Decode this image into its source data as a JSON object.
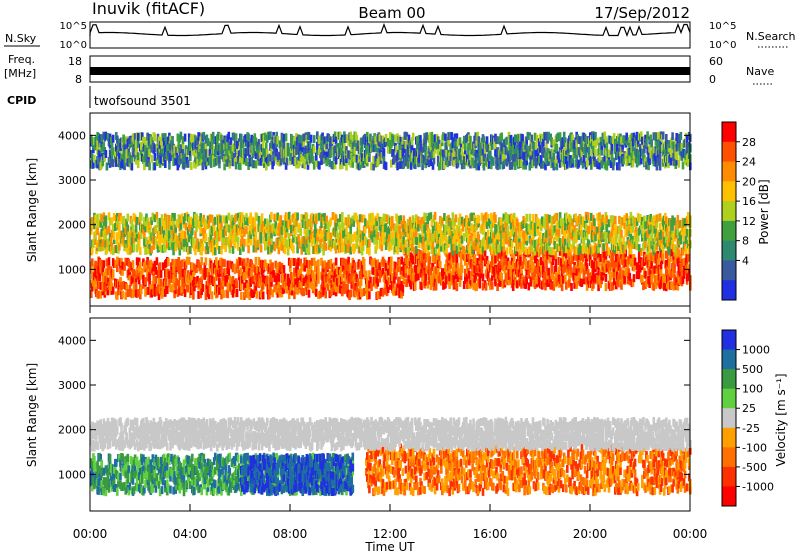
{
  "header": {
    "station": "Inuvik (fitACF)",
    "beam": "Beam 00",
    "date": "17/Sep/2012"
  },
  "strip_panels": {
    "nsky": {
      "label": "N.Sky",
      "right_label": "N.Search",
      "ticks_left": [
        "10^5",
        "10^0"
      ],
      "ticks_right": [
        "10^5",
        "10^0"
      ]
    },
    "freq": {
      "label_line1": "Freq.",
      "label_line2": "[MHz]",
      "right_label": "Nave",
      "ticks_left": [
        "18",
        "8"
      ],
      "ticks_right": [
        "60",
        "0"
      ]
    },
    "cpid": {
      "label": "CPID",
      "program": "twofsound 3501"
    }
  },
  "chart_data": [
    {
      "type": "heatmap",
      "name": "power",
      "xlabel": "Time UT",
      "ylabel": "Slant Range [km]",
      "x_ticks": [
        "00:00",
        "04:00",
        "08:00",
        "12:00",
        "16:00",
        "20:00",
        "00:00"
      ],
      "x_range_hours": [
        0,
        24
      ],
      "y_ticks": [
        1000,
        2000,
        3000,
        4000
      ],
      "ylim": [
        180,
        4500
      ],
      "colorbar": {
        "label": "Power [dB]",
        "ticks": [
          "28",
          "24",
          "20",
          "16",
          "12",
          "8",
          "4"
        ],
        "colors": [
          "#ff0000",
          "#ff5000",
          "#ff8c00",
          "#ffc000",
          "#b0d020",
          "#40a040",
          "#2f8870",
          "#3a5aa0",
          "#2030e0"
        ]
      },
      "bands": [
        {
          "from_h": 0.0,
          "to_h": 12.5,
          "range_from": 400,
          "range_to": 1200,
          "level": "strong"
        },
        {
          "from_h": 12.5,
          "to_h": 24.0,
          "range_from": 600,
          "range_to": 1400,
          "level": "strong"
        },
        {
          "from_h": 0.0,
          "to_h": 24.0,
          "range_from": 1400,
          "range_to": 2200,
          "level": "moderate"
        },
        {
          "from_h": 0.0,
          "to_h": 24.0,
          "range_from": 3300,
          "range_to": 4000,
          "level": "weak"
        }
      ]
    },
    {
      "type": "heatmap",
      "name": "velocity",
      "xlabel": "Time UT",
      "ylabel": "Slant Range [km]",
      "x_ticks": [
        "00:00",
        "04:00",
        "08:00",
        "12:00",
        "16:00",
        "20:00",
        "00:00"
      ],
      "x_range_hours": [
        0,
        24
      ],
      "y_ticks": [
        1000,
        2000,
        3000,
        4000
      ],
      "ylim": [
        180,
        4500
      ],
      "colorbar": {
        "label": "Velocity [m s⁻¹]",
        "ticks": [
          "1000",
          "500",
          "100",
          "25",
          "-25",
          "-100",
          "-500",
          "-1000"
        ],
        "colors": [
          "#2030e0",
          "#1e6fa0",
          "#3a9a40",
          "#60d040",
          "#c8c8c8",
          "#ffa000",
          "#ff7000",
          "#ff3000",
          "#ff0000"
        ]
      },
      "bands": [
        {
          "from_h": 0.0,
          "to_h": 10.5,
          "range_from": 600,
          "range_to": 1400,
          "level": "positive"
        },
        {
          "from_h": 6.0,
          "to_h": 10.5,
          "range_from": 600,
          "range_to": 1400,
          "level": "strong-positive"
        },
        {
          "from_h": 11.0,
          "to_h": 24.0,
          "range_from": 600,
          "range_to": 1600,
          "level": "negative"
        },
        {
          "from_h": 0.0,
          "to_h": 24.0,
          "range_from": 1600,
          "range_to": 2200,
          "level": "near-zero"
        }
      ]
    }
  ]
}
